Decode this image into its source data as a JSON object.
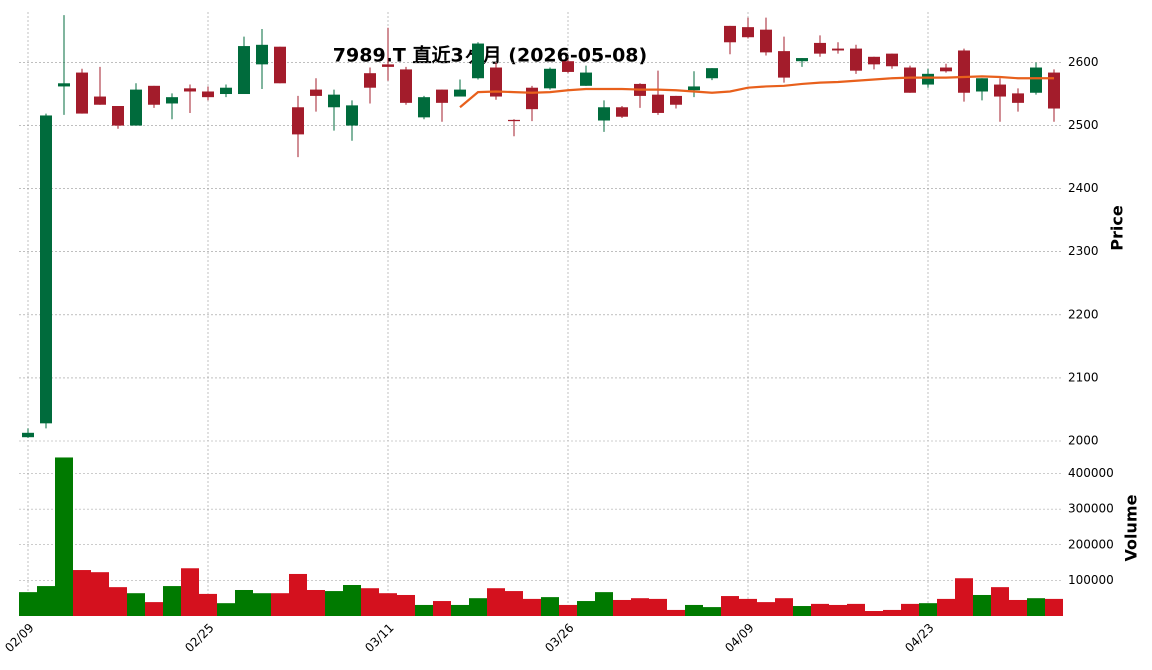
{
  "chart_data": {
    "type": "candlestick",
    "title": "7989.T 直近3ヶ月 (2026-05-08)",
    "ylabel": "Price",
    "categories": [
      "02/09",
      null,
      null,
      null,
      null,
      null,
      null,
      null,
      null,
      null,
      "02/25",
      null,
      null,
      null,
      null,
      null,
      null,
      null,
      null,
      null,
      "03/11",
      null,
      null,
      null,
      null,
      null,
      null,
      null,
      null,
      null,
      "03/26",
      null,
      null,
      null,
      null,
      null,
      null,
      null,
      null,
      null,
      "04/09",
      null,
      null,
      null,
      null,
      null,
      null,
      null,
      null,
      null,
      "04/23",
      null,
      null,
      null,
      null,
      null,
      null,
      null
    ],
    "open": [
      2006,
      2028,
      2562,
      2584,
      2546,
      2531,
      2500,
      2563,
      2535,
      2559,
      2554,
      2550,
      2550,
      2597,
      2625,
      2529,
      2557,
      2529,
      2500,
      2583,
      2597,
      2589,
      2513,
      2557,
      2546,
      2575,
      2592,
      2509,
      2560,
      2559,
      2602,
      2563,
      2508,
      2529,
      2566,
      2549,
      2547,
      2556,
      2575,
      2658,
      2656,
      2652,
      2618,
      2602,
      2631,
      2622,
      2622,
      2609,
      2614,
      2592,
      2565,
      2592,
      2619,
      2554,
      2565,
      2551,
      2552,
      2584
    ],
    "high": [
      2020,
      2519,
      2675,
      2590,
      2593,
      2531,
      2567,
      2563,
      2551,
      2565,
      2562,
      2565,
      2641,
      2653,
      2625,
      2547,
      2575,
      2557,
      2540,
      2592,
      2655,
      2593,
      2547,
      2557,
      2573,
      2632,
      2600,
      2510,
      2563,
      2592,
      2605,
      2595,
      2540,
      2531,
      2567,
      2587,
      2547,
      2586,
      2591,
      2658,
      2671,
      2671,
      2641,
      2607,
      2643,
      2632,
      2628,
      2609,
      2614,
      2595,
      2590,
      2598,
      2622,
      2575,
      2575,
      2559,
      2600,
      2589
    ],
    "low": [
      2005,
      2020,
      2517,
      2519,
      2533,
      2495,
      2500,
      2528,
      2510,
      2520,
      2540,
      2545,
      2550,
      2558,
      2567,
      2450,
      2522,
      2492,
      2476,
      2535,
      2571,
      2533,
      2510,
      2506,
      2546,
      2573,
      2541,
      2483,
      2507,
      2557,
      2583,
      2563,
      2490,
      2512,
      2528,
      2517,
      2527,
      2545,
      2572,
      2613,
      2638,
      2611,
      2568,
      2593,
      2609,
      2614,
      2582,
      2589,
      2590,
      2552,
      2560,
      2584,
      2538,
      2540,
      2506,
      2522,
      2549,
      2506
    ],
    "close": [
      2013,
      2516,
      2567,
      2519,
      2533,
      2500,
      2557,
      2533,
      2545,
      2554,
      2545,
      2560,
      2626,
      2628,
      2567,
      2486,
      2547,
      2549,
      2532,
      2560,
      2593,
      2536,
      2545,
      2536,
      2557,
      2630,
      2546,
      2507,
      2526,
      2590,
      2585,
      2584,
      2529,
      2514,
      2547,
      2520,
      2533,
      2562,
      2591,
      2632,
      2640,
      2616,
      2576,
      2607,
      2614,
      2619,
      2587,
      2597,
      2594,
      2552,
      2582,
      2586,
      2552,
      2575,
      2546,
      2536,
      2592,
      2527
    ],
    "ma": {
      "color": "#e8601c",
      "values": [
        null,
        null,
        null,
        null,
        null,
        null,
        null,
        null,
        null,
        null,
        null,
        null,
        null,
        null,
        null,
        null,
        null,
        null,
        null,
        null,
        null,
        null,
        null,
        null,
        2529,
        2553,
        2554,
        2553,
        2552,
        2553,
        2556,
        2558,
        2558,
        2558,
        2557,
        2557,
        2556,
        2554,
        2552,
        2554,
        2560,
        2562,
        2563,
        2566,
        2568,
        2569,
        2571,
        2573,
        2575,
        2576,
        2576,
        2576,
        2577,
        2578,
        2577,
        2575,
        2575,
        2575
      ]
    },
    "up_color": "#006b3c",
    "down_color": "#a31c2b",
    "ylim": [
      2000,
      2680
    ],
    "yticks": [
      2000,
      2100,
      2200,
      2300,
      2400,
      2500,
      2600
    ],
    "grid": true,
    "volume": {
      "ylabel": "Volume",
      "up_color": "#007a00",
      "down_color": "#d4111e",
      "ylim": [
        0,
        480000
      ],
      "yticks": [
        100000,
        200000,
        300000,
        400000
      ],
      "values": [
        67000,
        84000,
        445000,
        129000,
        123000,
        81000,
        64000,
        39000,
        84000,
        134000,
        62000,
        36000,
        73000,
        64000,
        64000,
        118000,
        73000,
        70000,
        87000,
        78000,
        64000,
        59000,
        31000,
        42000,
        31000,
        50000,
        78000,
        70000,
        48000,
        53000,
        31000,
        42000,
        67000,
        45000,
        50000,
        48000,
        17000,
        31000,
        25000,
        56000,
        48000,
        39000,
        50000,
        28000,
        34000,
        31000,
        34000,
        14000,
        17000,
        34000,
        36000,
        48000,
        106000,
        59000,
        81000,
        45000,
        50000,
        48000
      ]
    }
  }
}
